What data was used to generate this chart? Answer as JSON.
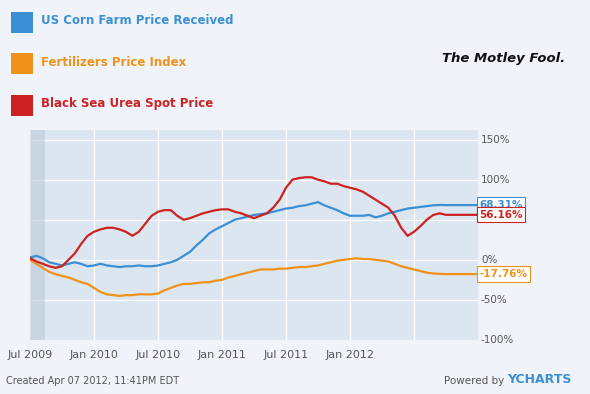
{
  "background_color": "#f0f4fa",
  "plot_bg_color": "#dce6f0",
  "grid_color": "#ffffff",
  "ylim": [
    -100,
    162
  ],
  "yticks": [
    -100,
    -50,
    0,
    50,
    100,
    150
  ],
  "ytick_labels": [
    "-100%",
    "-50%",
    "0%",
    "50%",
    "100%",
    "150%"
  ],
  "legend_items": [
    {
      "label": "US Corn Farm Price Received",
      "color": "#3b8fd4"
    },
    {
      "label": "Fertilizers Price Index",
      "color": "#f0921a"
    },
    {
      "label": "Black Sea Urea Spot Price",
      "color": "#cc2222"
    }
  ],
  "end_labels": [
    {
      "value": "68.31%",
      "color": "#3b8fd4",
      "y": 68.31
    },
    {
      "value": "56.16%",
      "color": "#cc2222",
      "y": 56.16
    },
    {
      "value": "-17.76%",
      "color": "#f0921a",
      "y": -17.76
    }
  ],
  "footer_left": "Created Apr 07 2012, 11:41PM EDT",
  "footer_right": "Powered by YCHARTS",
  "xtick_positions": [
    0,
    5,
    10,
    15,
    20,
    25,
    30
  ],
  "xtick_labels": [
    "Jul 2009",
    "Jan 2010",
    "Jul 2010",
    "Jan 2011",
    "Jul 2011",
    "Jan 2012",
    ""
  ],
  "corn_x": [
    0,
    0.5,
    1,
    1.5,
    2,
    2.5,
    3,
    3.5,
    4,
    4.5,
    5,
    5.5,
    6,
    6.5,
    7,
    7.5,
    8,
    8.5,
    9,
    9.5,
    10,
    10.5,
    11,
    11.5,
    12,
    12.5,
    13,
    13.5,
    14,
    14.5,
    15,
    15.5,
    16,
    16.5,
    17,
    17.5,
    18,
    18.5,
    19,
    19.5,
    20,
    20.5,
    21,
    21.5,
    22,
    22.5,
    23,
    23.5,
    24,
    24.5,
    25,
    25.5,
    26,
    26.5,
    27,
    27.5,
    28,
    28.5,
    29,
    29.5,
    30,
    30.5,
    31,
    31.5,
    32,
    32.5,
    33,
    33.5,
    34,
    34.5,
    35
  ],
  "corn_y": [
    3,
    5,
    2,
    -3,
    -5,
    -7,
    -5,
    -3,
    -5,
    -8,
    -7,
    -5,
    -7,
    -8,
    -9,
    -8,
    -8,
    -7,
    -8,
    -8,
    -7,
    -5,
    -3,
    0,
    5,
    10,
    18,
    25,
    33,
    38,
    42,
    46,
    50,
    52,
    54,
    56,
    57,
    58,
    60,
    62,
    64,
    65,
    67,
    68,
    70,
    72,
    68,
    65,
    62,
    58,
    55,
    55,
    55,
    56,
    53,
    55,
    58,
    60,
    62,
    64,
    65,
    66,
    67,
    68,
    68.5,
    68.31,
    68.31,
    68.31,
    68.31,
    68.31,
    68.31
  ],
  "fert_x": [
    0,
    0.5,
    1,
    1.5,
    2,
    2.5,
    3,
    3.5,
    4,
    4.5,
    5,
    5.5,
    6,
    6.5,
    7,
    7.5,
    8,
    8.5,
    9,
    9.5,
    10,
    10.5,
    11,
    11.5,
    12,
    12.5,
    13,
    13.5,
    14,
    14.5,
    15,
    15.5,
    16,
    16.5,
    17,
    17.5,
    18,
    18.5,
    19,
    19.5,
    20,
    20.5,
    21,
    21.5,
    22,
    22.5,
    23,
    23.5,
    24,
    24.5,
    25,
    25.5,
    26,
    26.5,
    27,
    27.5,
    28,
    28.5,
    29,
    29.5,
    30,
    30.5,
    31,
    31.5,
    32,
    32.5,
    33,
    33.5,
    34,
    34.5,
    35
  ],
  "fert_y": [
    0,
    -5,
    -10,
    -15,
    -18,
    -20,
    -22,
    -25,
    -28,
    -30,
    -35,
    -40,
    -43,
    -44,
    -45,
    -44,
    -44,
    -43,
    -43,
    -43,
    -42,
    -38,
    -35,
    -32,
    -30,
    -30,
    -29,
    -28,
    -28,
    -26,
    -25,
    -22,
    -20,
    -18,
    -16,
    -14,
    -12,
    -12,
    -12,
    -11,
    -11,
    -10,
    -9,
    -9,
    -8,
    -7,
    -5,
    -3,
    -1,
    0,
    1,
    2,
    1,
    1,
    0,
    -1,
    -2,
    -5,
    -8,
    -10,
    -12,
    -14,
    -16,
    -17,
    -17.5,
    -17.76,
    -17.76,
    -17.76,
    -17.76,
    -17.76,
    -17.76
  ],
  "urea_x": [
    0,
    0.5,
    1,
    1.5,
    2,
    2.5,
    3,
    3.5,
    4,
    4.5,
    5,
    5.5,
    6,
    6.5,
    7,
    7.5,
    8,
    8.5,
    9,
    9.5,
    10,
    10.5,
    11,
    11.5,
    12,
    12.5,
    13,
    13.5,
    14,
    14.5,
    15,
    15.5,
    16,
    16.5,
    17,
    17.5,
    18,
    18.5,
    19,
    19.5,
    20,
    20.5,
    21,
    21.5,
    22,
    22.5,
    23,
    23.5,
    24,
    24.5,
    25,
    25.5,
    26,
    26.5,
    27,
    27.5,
    28,
    28.5,
    29,
    29.5,
    30,
    30.5,
    31,
    31.5,
    32,
    32.5,
    33,
    33.5,
    34,
    34.5,
    35
  ],
  "urea_y": [
    2,
    -2,
    -5,
    -8,
    -10,
    -8,
    0,
    8,
    20,
    30,
    35,
    38,
    40,
    40,
    38,
    35,
    30,
    35,
    45,
    55,
    60,
    62,
    62,
    55,
    50,
    52,
    55,
    58,
    60,
    62,
    63,
    63,
    60,
    58,
    55,
    52,
    55,
    58,
    65,
    75,
    90,
    100,
    102,
    103,
    103,
    100,
    98,
    95,
    95,
    92,
    90,
    88,
    85,
    80,
    75,
    70,
    65,
    55,
    40,
    30,
    35,
    42,
    50,
    56,
    58,
    56.16,
    56.16,
    56.16,
    56.16,
    56.16,
    56.16
  ]
}
